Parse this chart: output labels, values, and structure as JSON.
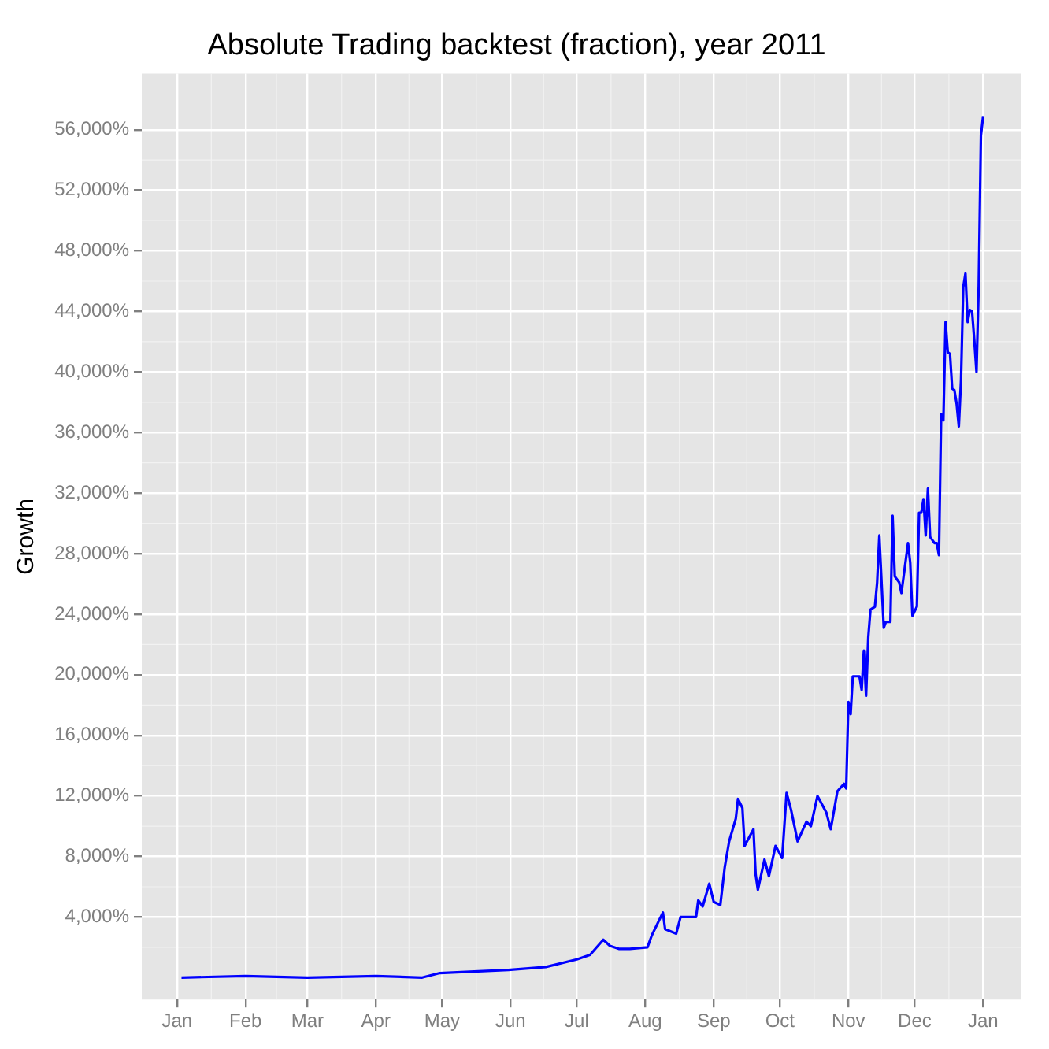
{
  "chart_data": {
    "type": "line",
    "title": "Absolute Trading backtest (fraction), year 2011",
    "ylabel": "Growth",
    "xlim": [
      "2010-12-16",
      "2012-01-18"
    ],
    "ylim": [
      -1450,
      59700
    ],
    "xticks": [
      {
        "value": "2011-01",
        "label": "Jan"
      },
      {
        "value": "2011-02",
        "label": "Feb"
      },
      {
        "value": "2011-03",
        "label": "Mar"
      },
      {
        "value": "2011-04",
        "label": "Apr"
      },
      {
        "value": "2011-05",
        "label": "May"
      },
      {
        "value": "2011-06",
        "label": "Jun"
      },
      {
        "value": "2011-07",
        "label": "Jul"
      },
      {
        "value": "2011-08",
        "label": "Aug"
      },
      {
        "value": "2011-09",
        "label": "Sep"
      },
      {
        "value": "2011-10",
        "label": "Oct"
      },
      {
        "value": "2011-11",
        "label": "Nov"
      },
      {
        "value": "2011-12",
        "label": "Dec"
      },
      {
        "value": "2012-01",
        "label": "Jan"
      }
    ],
    "yticks": [
      {
        "value": 4000,
        "label": "4,000%"
      },
      {
        "value": 8000,
        "label": "8,000%"
      },
      {
        "value": 12000,
        "label": "12,000%"
      },
      {
        "value": 16000,
        "label": "16,000%"
      },
      {
        "value": 20000,
        "label": "20,000%"
      },
      {
        "value": 24000,
        "label": "24,000%"
      },
      {
        "value": 28000,
        "label": "28,000%"
      },
      {
        "value": 32000,
        "label": "32,000%"
      },
      {
        "value": 36000,
        "label": "36,000%"
      },
      {
        "value": 40000,
        "label": "40,000%"
      },
      {
        "value": 44000,
        "label": "44,000%"
      },
      {
        "value": 48000,
        "label": "48,000%"
      },
      {
        "value": 52000,
        "label": "52,000%"
      },
      {
        "value": 56000,
        "label": "56,000%"
      }
    ],
    "grid": true,
    "legend": false,
    "marker": "none",
    "line_style": "solid",
    "series": [
      {
        "color": "#0000ff",
        "x": [
          "2011-01-03",
          "2011-02-01",
          "2011-03-01",
          "2011-04-01",
          "2011-04-22",
          "2011-04-30",
          "2011-05-31",
          "2011-06-17",
          "2011-07-01",
          "2011-07-07",
          "2011-07-13",
          "2011-07-16",
          "2011-07-20",
          "2011-07-25",
          "2011-08-02",
          "2011-08-04",
          "2011-08-09",
          "2011-08-10",
          "2011-08-15",
          "2011-08-17",
          "2011-08-24",
          "2011-08-25",
          "2011-08-27",
          "2011-08-30",
          "2011-09-01",
          "2011-09-04",
          "2011-09-06",
          "2011-09-08",
          "2011-09-11",
          "2011-09-12",
          "2011-09-14",
          "2011-09-15",
          "2011-09-19",
          "2011-09-20",
          "2011-09-21",
          "2011-09-24",
          "2011-09-26",
          "2011-09-29",
          "2011-10-02",
          "2011-10-04",
          "2011-10-06",
          "2011-10-09",
          "2011-10-13",
          "2011-10-15",
          "2011-10-18",
          "2011-10-22",
          "2011-10-24",
          "2011-10-27",
          "2011-10-30",
          "2011-10-31",
          "2011-11-01",
          "2011-11-02",
          "2011-11-03",
          "2011-11-06",
          "2011-11-07",
          "2011-11-08",
          "2011-11-09",
          "2011-11-10",
          "2011-11-11",
          "2011-11-13",
          "2011-11-14",
          "2011-11-15",
          "2011-11-17",
          "2011-11-18",
          "2011-11-20",
          "2011-11-21",
          "2011-11-22",
          "2011-11-24",
          "2011-11-25",
          "2011-11-28",
          "2011-11-29",
          "2011-11-30",
          "2011-12-02",
          "2011-12-03",
          "2011-12-04",
          "2011-12-05",
          "2011-12-06",
          "2011-12-07",
          "2011-12-08",
          "2011-12-10",
          "2011-12-11",
          "2011-12-12",
          "2011-12-13",
          "2011-12-14",
          "2011-12-15",
          "2011-12-16",
          "2011-12-17",
          "2011-12-18",
          "2011-12-19",
          "2011-12-20",
          "2011-12-21",
          "2011-12-22",
          "2011-12-23",
          "2011-12-24",
          "2011-12-25",
          "2011-12-26",
          "2011-12-27",
          "2011-12-28",
          "2011-12-29",
          "2011-12-30",
          "2011-12-31",
          "2012-01-01"
        ],
        "values": [
          0,
          100,
          0,
          100,
          0,
          300,
          500,
          700,
          1200,
          1500,
          2500,
          2100,
          1900,
          1900,
          2000,
          2800,
          4300,
          3200,
          2900,
          4000,
          4000,
          5100,
          4700,
          6200,
          5000,
          4800,
          7300,
          9000,
          10500,
          11800,
          11200,
          8700,
          9800,
          6800,
          5800,
          7800,
          6700,
          8700,
          7900,
          12200,
          11100,
          9000,
          10300,
          10000,
          12000,
          10900,
          9800,
          12300,
          12800,
          12500,
          18200,
          17400,
          19900,
          19900,
          19000,
          21600,
          18600,
          22500,
          24300,
          24500,
          26100,
          29200,
          23100,
          23500,
          23500,
          30500,
          26500,
          26100,
          25400,
          28700,
          27400,
          23900,
          24500,
          30700,
          30700,
          31600,
          29200,
          32300,
          29100,
          28700,
          28700,
          27900,
          37200,
          36800,
          43300,
          41300,
          41200,
          38900,
          38800,
          37900,
          36400,
          39500,
          45600,
          46500,
          43300,
          44100,
          44000,
          42100,
          40000,
          45700,
          55600,
          56900
        ]
      }
    ]
  }
}
